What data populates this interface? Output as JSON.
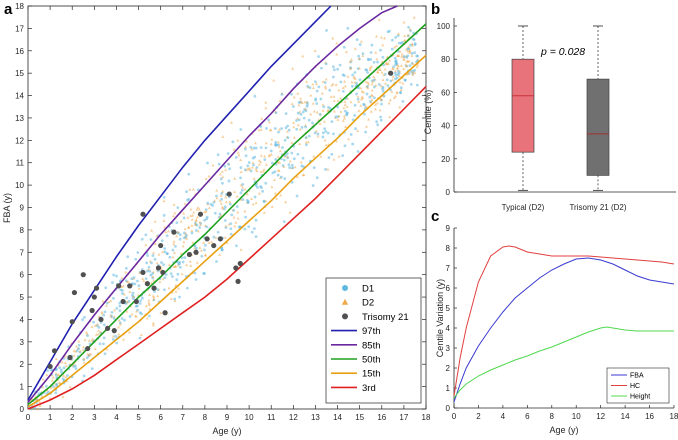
{
  "panels": {
    "a": "a",
    "b": "b",
    "c": "c"
  },
  "chart_data": [
    {
      "panel": "a",
      "type": "scatter",
      "xlabel": "Age (y)",
      "ylabel": "FBA (y)",
      "xlim": [
        0,
        18
      ],
      "ylim": [
        0,
        18
      ],
      "xticks": [
        "0",
        "1",
        "2",
        "3",
        "4",
        "5",
        "6",
        "7",
        "8",
        "9",
        "10",
        "11",
        "12",
        "13",
        "14",
        "15",
        "16",
        "17",
        "18"
      ],
      "yticks": [
        "0",
        "1",
        "2",
        "3",
        "4",
        "5",
        "6",
        "7",
        "8",
        "9",
        "10",
        "11",
        "12",
        "13",
        "14",
        "15",
        "16",
        "17",
        "18"
      ],
      "legend_position": "bottom-right",
      "scatter_series": [
        {
          "name": "D1",
          "color": "#5fb8e0",
          "marker": "circle"
        },
        {
          "name": "D2",
          "color": "#f0a848",
          "marker": "triangle"
        }
      ],
      "trisomy21": {
        "name": "Trisomy 21",
        "color": "#505050",
        "points": [
          [
            1.0,
            1.9
          ],
          [
            1.2,
            2.6
          ],
          [
            1.9,
            2.3
          ],
          [
            2.0,
            3.9
          ],
          [
            2.1,
            5.2
          ],
          [
            2.5,
            6.0
          ],
          [
            2.7,
            2.7
          ],
          [
            2.9,
            4.4
          ],
          [
            3.0,
            5.0
          ],
          [
            3.1,
            5.4
          ],
          [
            3.3,
            4.0
          ],
          [
            3.6,
            3.6
          ],
          [
            3.9,
            3.5
          ],
          [
            4.1,
            5.5
          ],
          [
            4.3,
            4.8
          ],
          [
            4.6,
            5.5
          ],
          [
            4.9,
            4.8
          ],
          [
            5.2,
            8.7
          ],
          [
            5.2,
            6.1
          ],
          [
            5.4,
            5.6
          ],
          [
            5.7,
            5.4
          ],
          [
            5.9,
            6.3
          ],
          [
            6.0,
            7.3
          ],
          [
            6.1,
            6.1
          ],
          [
            6.2,
            4.3
          ],
          [
            6.6,
            7.9
          ],
          [
            7.3,
            6.9
          ],
          [
            7.6,
            7.0
          ],
          [
            7.8,
            8.7
          ],
          [
            8.1,
            7.6
          ],
          [
            8.4,
            7.3
          ],
          [
            8.7,
            7.6
          ],
          [
            9.1,
            9.6
          ],
          [
            9.4,
            6.3
          ],
          [
            9.5,
            5.7
          ],
          [
            9.6,
            6.5
          ],
          [
            16.4,
            15.0
          ]
        ]
      },
      "centiles": [
        {
          "name": "97th",
          "color": "#1f1fb0",
          "x": [
            0,
            1,
            2,
            3,
            4,
            5,
            6,
            7,
            8,
            9,
            10,
            11,
            12,
            13,
            13.7
          ],
          "y": [
            0.4,
            2.1,
            3.8,
            5.3,
            6.8,
            8.2,
            9.5,
            10.8,
            12.0,
            13.1,
            14.2,
            15.3,
            16.3,
            17.3,
            18.0
          ]
        },
        {
          "name": "85th",
          "color": "#6a28a0",
          "x": [
            0,
            1,
            2,
            3,
            4,
            5,
            6,
            7,
            8,
            9,
            10,
            11,
            12,
            13,
            14,
            15,
            16,
            16.7
          ],
          "y": [
            0.3,
            1.5,
            2.9,
            4.2,
            5.4,
            6.6,
            7.8,
            8.9,
            10.0,
            11.1,
            12.2,
            13.2,
            14.3,
            15.3,
            16.2,
            17.0,
            17.7,
            18.0
          ]
        },
        {
          "name": "50th",
          "color": "#1ea01e",
          "x": [
            0,
            1,
            2,
            3,
            4,
            5,
            6,
            7,
            8,
            9,
            10,
            11,
            12,
            13,
            14,
            15,
            16,
            17,
            18
          ],
          "y": [
            0.2,
            1.0,
            2.0,
            3.0,
            4.0,
            5.0,
            5.9,
            6.9,
            7.8,
            8.8,
            9.8,
            10.8,
            11.8,
            12.7,
            13.6,
            14.5,
            15.4,
            16.3,
            17.2
          ]
        },
        {
          "name": "15th",
          "color": "#e8a010",
          "x": [
            0,
            1,
            2,
            3,
            4,
            5,
            6,
            7,
            8,
            9,
            10,
            11,
            12,
            13,
            14,
            15,
            16,
            17,
            18
          ],
          "y": [
            0.1,
            0.7,
            1.5,
            2.3,
            3.1,
            3.9,
            4.8,
            5.7,
            6.6,
            7.5,
            8.4,
            9.3,
            10.3,
            11.2,
            12.1,
            13.1,
            14.0,
            14.9,
            15.8
          ]
        },
        {
          "name": "3rd",
          "color": "#e02020",
          "x": [
            0,
            1,
            2,
            3,
            4,
            5,
            6,
            7,
            8,
            9,
            10,
            11,
            12,
            13,
            14,
            15,
            16,
            17,
            18
          ],
          "y": [
            0.0,
            0.4,
            0.9,
            1.5,
            2.2,
            2.9,
            3.6,
            4.3,
            5.0,
            5.8,
            6.7,
            7.6,
            8.5,
            9.4,
            10.4,
            11.4,
            12.4,
            13.4,
            14.4
          ]
        }
      ]
    },
    {
      "panel": "b",
      "type": "box",
      "ylabel": "Centile (%)",
      "ylim": [
        0,
        100
      ],
      "yticks": [
        "0",
        "20",
        "40",
        "60",
        "80",
        "100"
      ],
      "annotation": "p = 0.028",
      "boxes": [
        {
          "category": "Typical (D2)",
          "color": "#e8737a",
          "median_color": "#c8323c",
          "min": 1,
          "q1": 24,
          "median": 58,
          "q3": 80,
          "max": 100
        },
        {
          "category": "Trisomy 21 (D2)",
          "color": "#707070",
          "median_color": "#a03030",
          "min": 1,
          "q1": 10,
          "median": 35,
          "q3": 68,
          "max": 100
        }
      ]
    },
    {
      "panel": "c",
      "type": "line",
      "xlabel": "Age (y)",
      "ylabel": "Centile Variation (y)",
      "xlim": [
        0,
        18
      ],
      "ylim": [
        0,
        9
      ],
      "xticks": [
        "0",
        "2",
        "4",
        "6",
        "8",
        "10",
        "12",
        "14",
        "16",
        "18"
      ],
      "yticks": [
        "0",
        "1",
        "2",
        "3",
        "4",
        "5",
        "6",
        "7",
        "8",
        "9"
      ],
      "legend_position": "bottom-right",
      "series": [
        {
          "name": "FBA",
          "color": "#3a3ad0",
          "x": [
            0,
            0.5,
            1,
            2,
            3,
            4,
            5,
            6,
            7,
            8,
            9,
            10,
            11,
            12,
            13,
            14,
            15,
            16,
            17,
            18
          ],
          "y": [
            0.3,
            1.2,
            2.0,
            3.1,
            4.0,
            4.8,
            5.5,
            6.0,
            6.5,
            6.9,
            7.2,
            7.45,
            7.5,
            7.4,
            7.2,
            6.9,
            6.6,
            6.4,
            6.3,
            6.2
          ]
        },
        {
          "name": "HC",
          "color": "#e04040",
          "x": [
            0,
            0.5,
            1,
            2,
            3,
            4,
            4.5,
            5,
            6,
            7,
            8,
            9,
            10,
            11,
            12,
            13,
            14,
            15,
            16,
            17,
            18
          ],
          "y": [
            0.6,
            2.5,
            4.0,
            6.3,
            7.6,
            8.05,
            8.1,
            8.05,
            7.8,
            7.7,
            7.6,
            7.6,
            7.6,
            7.6,
            7.55,
            7.5,
            7.45,
            7.4,
            7.35,
            7.3,
            7.2
          ]
        },
        {
          "name": "Height",
          "color": "#50d850",
          "x": [
            0,
            0.5,
            1,
            2,
            3,
            4,
            5,
            6,
            7,
            8,
            9,
            10,
            11,
            12,
            12.5,
            13,
            14,
            15,
            16,
            17,
            18
          ],
          "y": [
            0.5,
            0.9,
            1.2,
            1.6,
            1.9,
            2.15,
            2.4,
            2.6,
            2.85,
            3.05,
            3.3,
            3.55,
            3.8,
            4.0,
            4.05,
            4.0,
            3.9,
            3.85,
            3.85,
            3.85,
            3.85
          ]
        }
      ]
    }
  ]
}
